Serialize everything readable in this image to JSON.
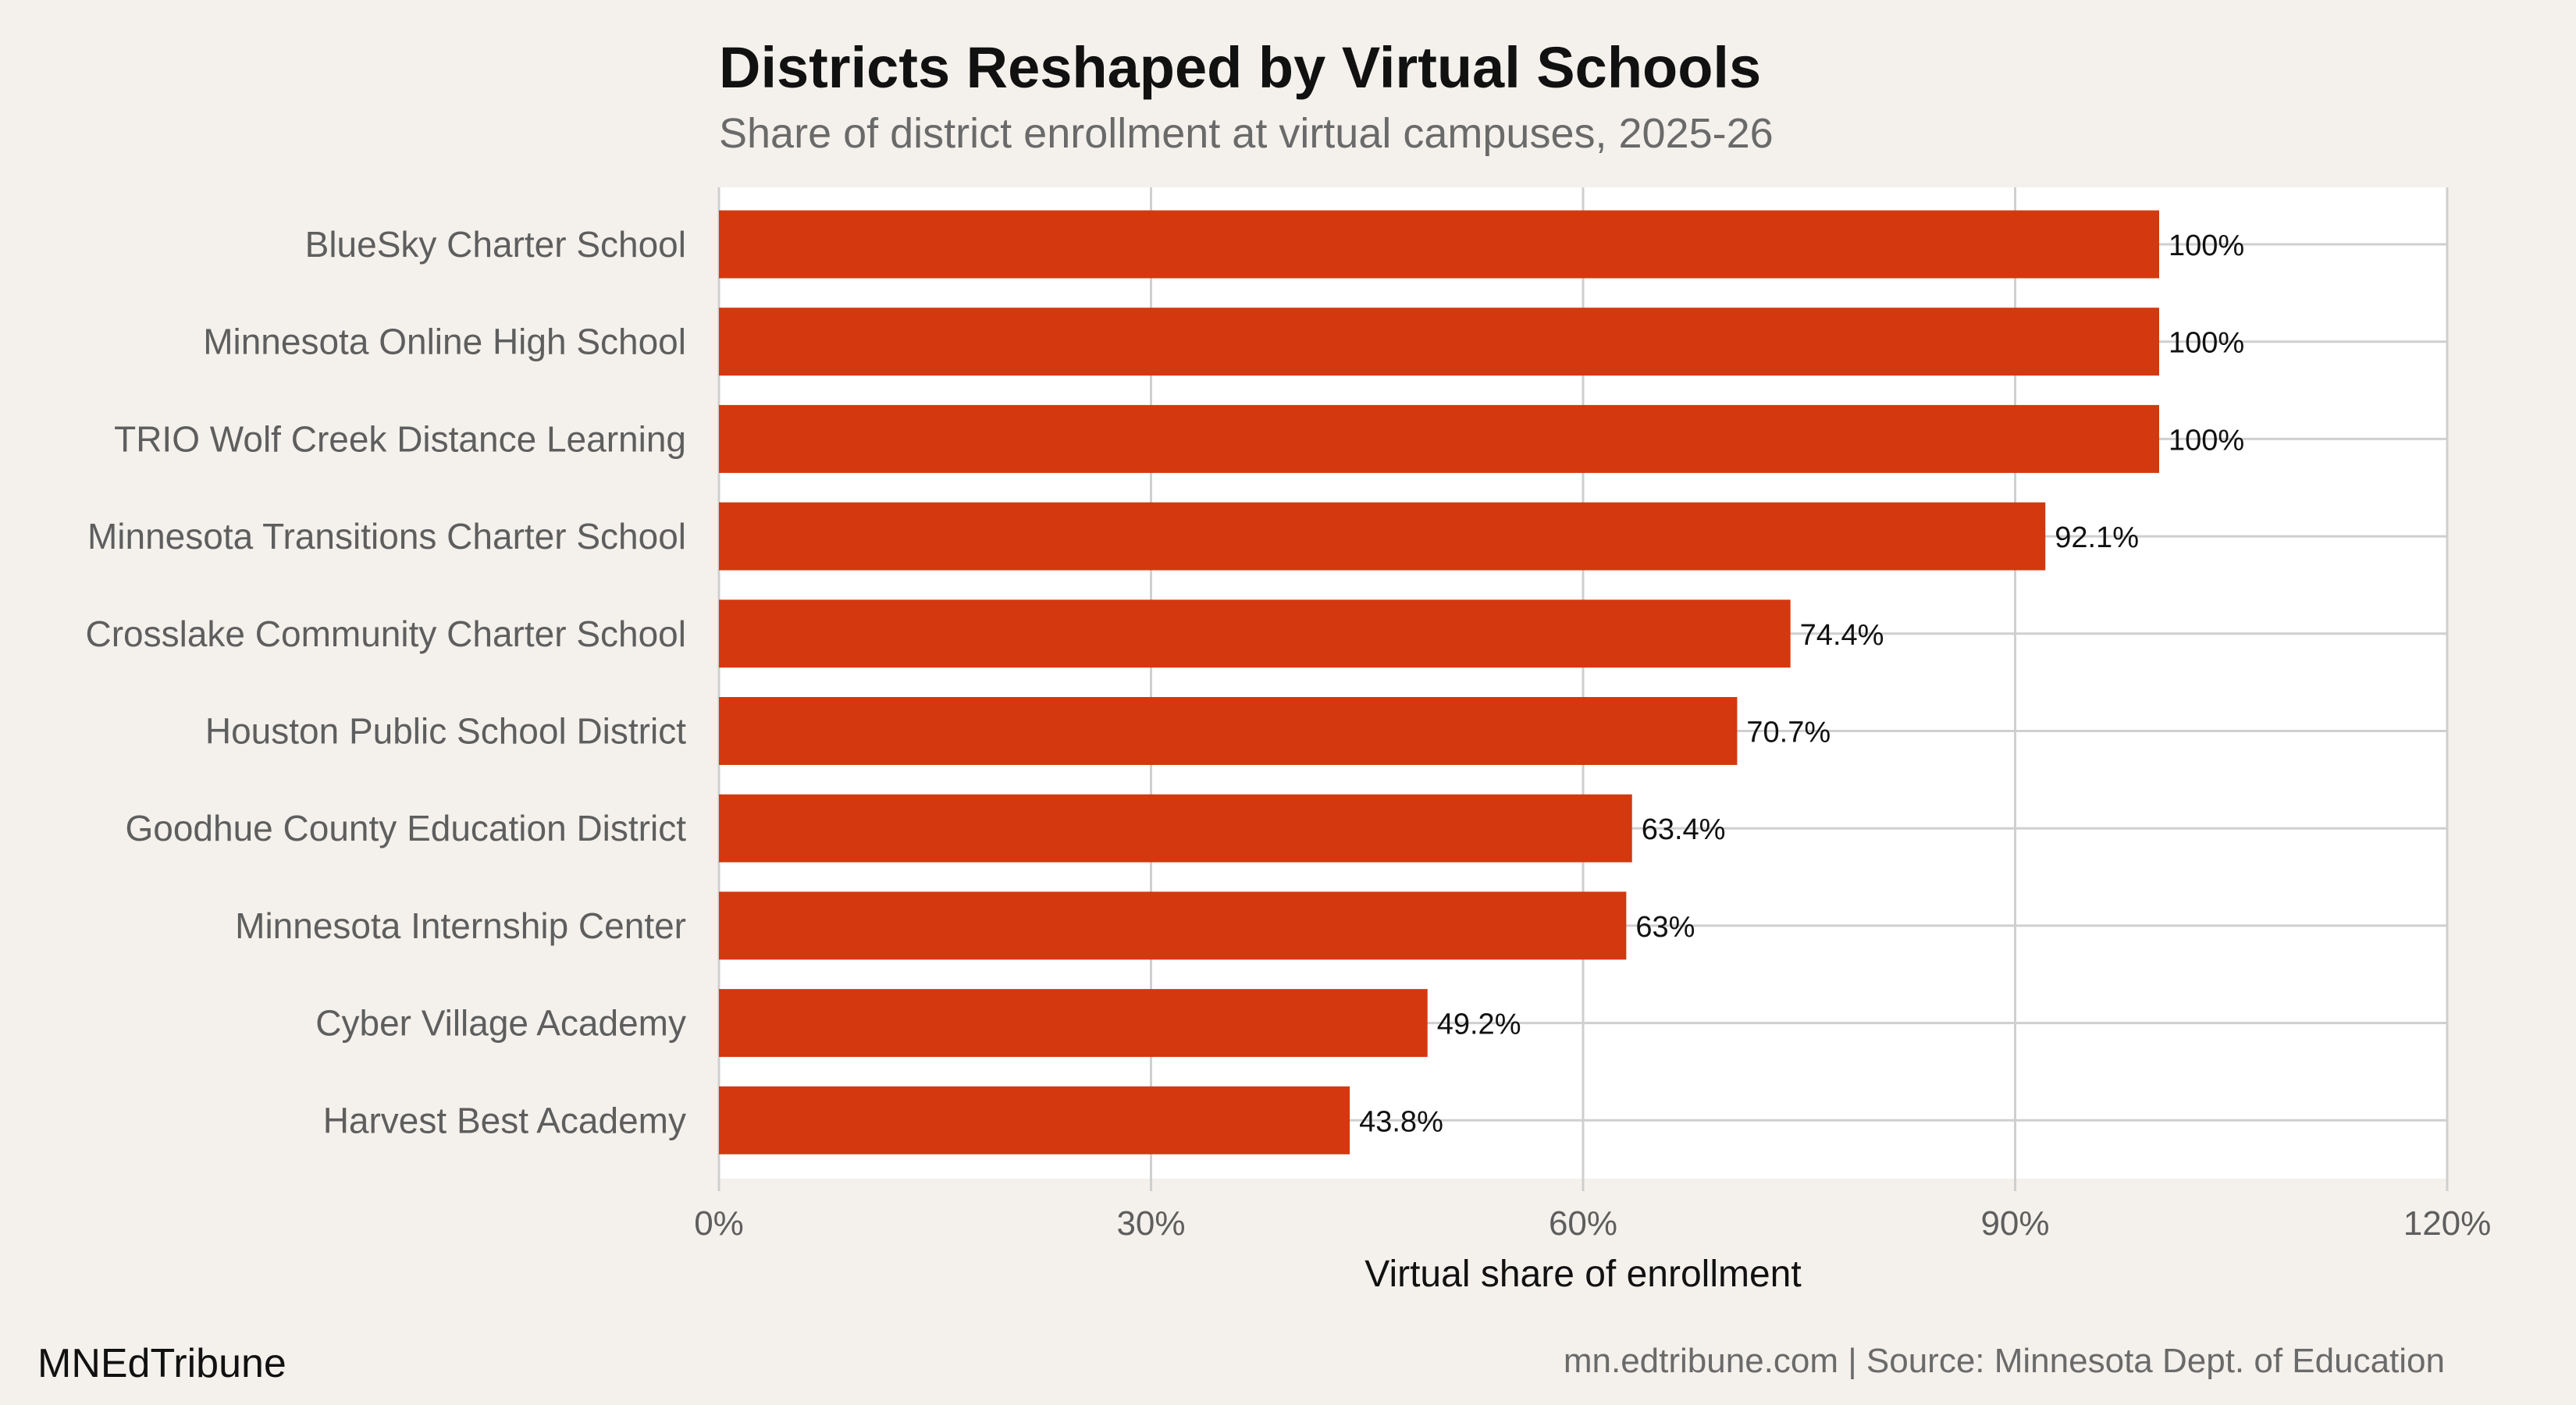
{
  "chart_data": {
    "type": "bar",
    "orientation": "horizontal",
    "title": "Districts Reshaped by Virtual Schools",
    "subtitle": "Share of district enrollment at virtual campuses, 2025-26",
    "xlabel": "Virtual share of enrollment",
    "ylabel": "",
    "xlim": [
      0,
      120
    ],
    "xticks": [
      0,
      30,
      60,
      90,
      120
    ],
    "xtick_labels": [
      "0%",
      "30%",
      "60%",
      "90%",
      "120%"
    ],
    "grid": true,
    "categories": [
      "BlueSky Charter School",
      "Minnesota Online High School",
      "TRIO Wolf Creek Distance Learning",
      "Minnesota Transitions Charter School",
      "Crosslake Community Charter School",
      "Houston Public School District",
      "Goodhue County Education District",
      "Minnesota Internship Center",
      "Cyber Village Academy",
      "Harvest Best Academy"
    ],
    "values": [
      100,
      100,
      100,
      92.1,
      74.4,
      70.7,
      63.4,
      63,
      49.2,
      43.8
    ],
    "data_labels": [
      "100%",
      "100%",
      "100%",
      "92.1%",
      "74.4%",
      "70.7%",
      "63.4%",
      "63%",
      "49.2%",
      "43.8%"
    ],
    "bar_color": "#d4380f",
    "panel_background": "#ffffff",
    "page_background": "#f4f1ec",
    "grid_color": "#cfcfcf"
  },
  "footer": {
    "brand": "MNEdTribune",
    "source": "mn.edtribune.com | Source: Minnesota Dept. of Education"
  }
}
